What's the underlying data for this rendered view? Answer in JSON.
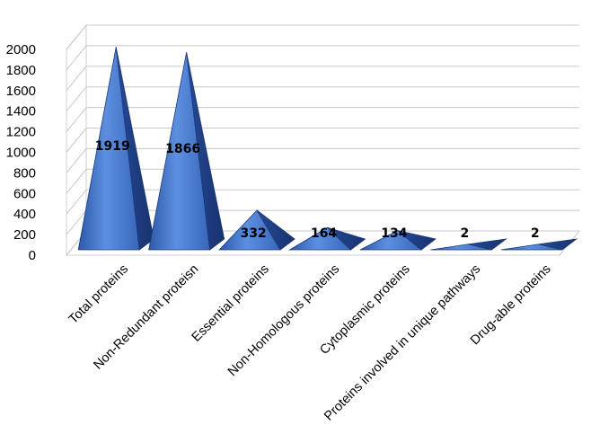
{
  "chart_data": {
    "type": "bar",
    "style": "3d-pyramid",
    "categories": [
      "Total proteins",
      "Non-Redundant proteisn",
      "Essential proteins",
      "Non-Homologous proteins",
      "Cytoplasmic proteins",
      "Proteins involved in unique pathways",
      "Drug-able proteins"
    ],
    "values": [
      1919,
      1866,
      332,
      164,
      134,
      2,
      2
    ],
    "data_labels": [
      "1919",
      "1866",
      "332",
      "164",
      "134",
      "2",
      "2"
    ],
    "y_ticks": [
      "0",
      "200",
      "400",
      "600",
      "800",
      "1000",
      "1200",
      "1400",
      "1600",
      "1800",
      "2000"
    ],
    "ylim": [
      0,
      2000
    ],
    "grid": true,
    "legend": "none",
    "colors": {
      "pyramid_light": "#5b8ee0",
      "pyramid_mid": "#3a6cc4",
      "pyramid_dark": "#1f3f86",
      "grid": "#c8c8c8",
      "wall": "#d0d0d0"
    }
  }
}
